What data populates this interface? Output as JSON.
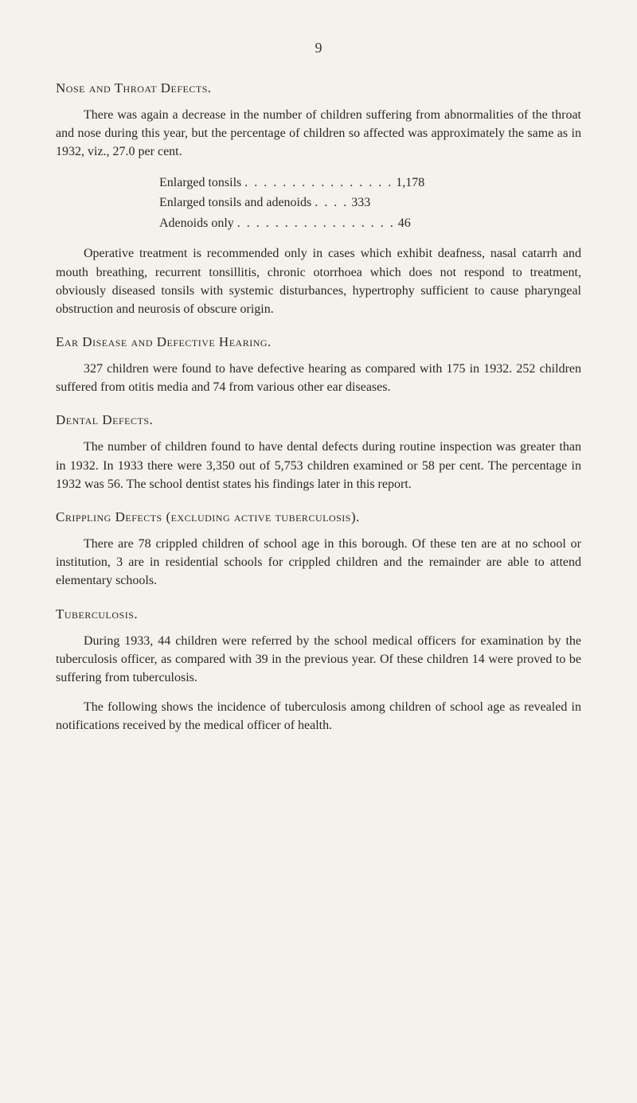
{
  "page_number": "9",
  "sections": {
    "nose_throat": {
      "heading": "Nose and Throat Defects.",
      "para1": "There was again a decrease in the number of children suffering from abnormalities of the throat and nose during this year, but the percentage of children so affected was approximately the same as in 1932, viz., 27.0 per cent.",
      "stats": {
        "row1_label": "Enlarged tonsils",
        "row1_dots": ". . . . . . . . . . . . . . . .",
        "row1_value": "1,178",
        "row2_label": "Enlarged tonsils and adenoids",
        "row2_dots": ". . . .",
        "row2_value": "333",
        "row3_label": "Adenoids only",
        "row3_dots": ". . . . . . . . . . . . . . . . .",
        "row3_value": "46"
      },
      "para2": "Operative treatment is recommended only in cases which exhibit deafness, nasal catarrh and mouth breathing, recurrent tonsillitis, chronic otorrhoea which does not respond to treatment, obviously diseased tonsils with systemic disturbances, hypertrophy sufficient to cause pharyngeal obstruction and neurosis of obscure origin."
    },
    "ear_disease": {
      "heading": "Ear Disease and Defective Hearing.",
      "para1": "327 children were found to have defective hearing as compared with 175 in 1932. 252 children suffered from otitis media and 74 from various other ear diseases."
    },
    "dental": {
      "heading": "Dental Defects.",
      "para1": "The number of children found to have dental defects during routine inspection was greater than in 1932. In 1933 there were 3,350 out of 5,753 children examined or 58 per cent. The percentage in 1932 was 56. The school dentist states his findings later in this report."
    },
    "crippling": {
      "heading": "Crippling Defects (excluding active tuberculosis).",
      "para1": "There are 78 crippled children of school age in this borough. Of these ten are at no school or institution, 3 are in residential schools for crippled children and the remainder are able to attend elementary schools."
    },
    "tuberculosis": {
      "heading": "Tuberculosis.",
      "para1": "During 1933, 44 children were referred by the school medical officers for examination by the tuberculosis officer, as compared with 39 in the previous year. Of these children 14 were proved to be suffering from tuberculosis.",
      "para2": "The following shows the incidence of tuberculosis among children of school age as revealed in notifications received by the medical officer of health."
    }
  },
  "colors": {
    "background": "#f5f2ed",
    "text": "#2a2824"
  },
  "typography": {
    "base_font_size": 16,
    "heading_font_size": 17,
    "font_family": "Georgia, Times New Roman, serif"
  }
}
